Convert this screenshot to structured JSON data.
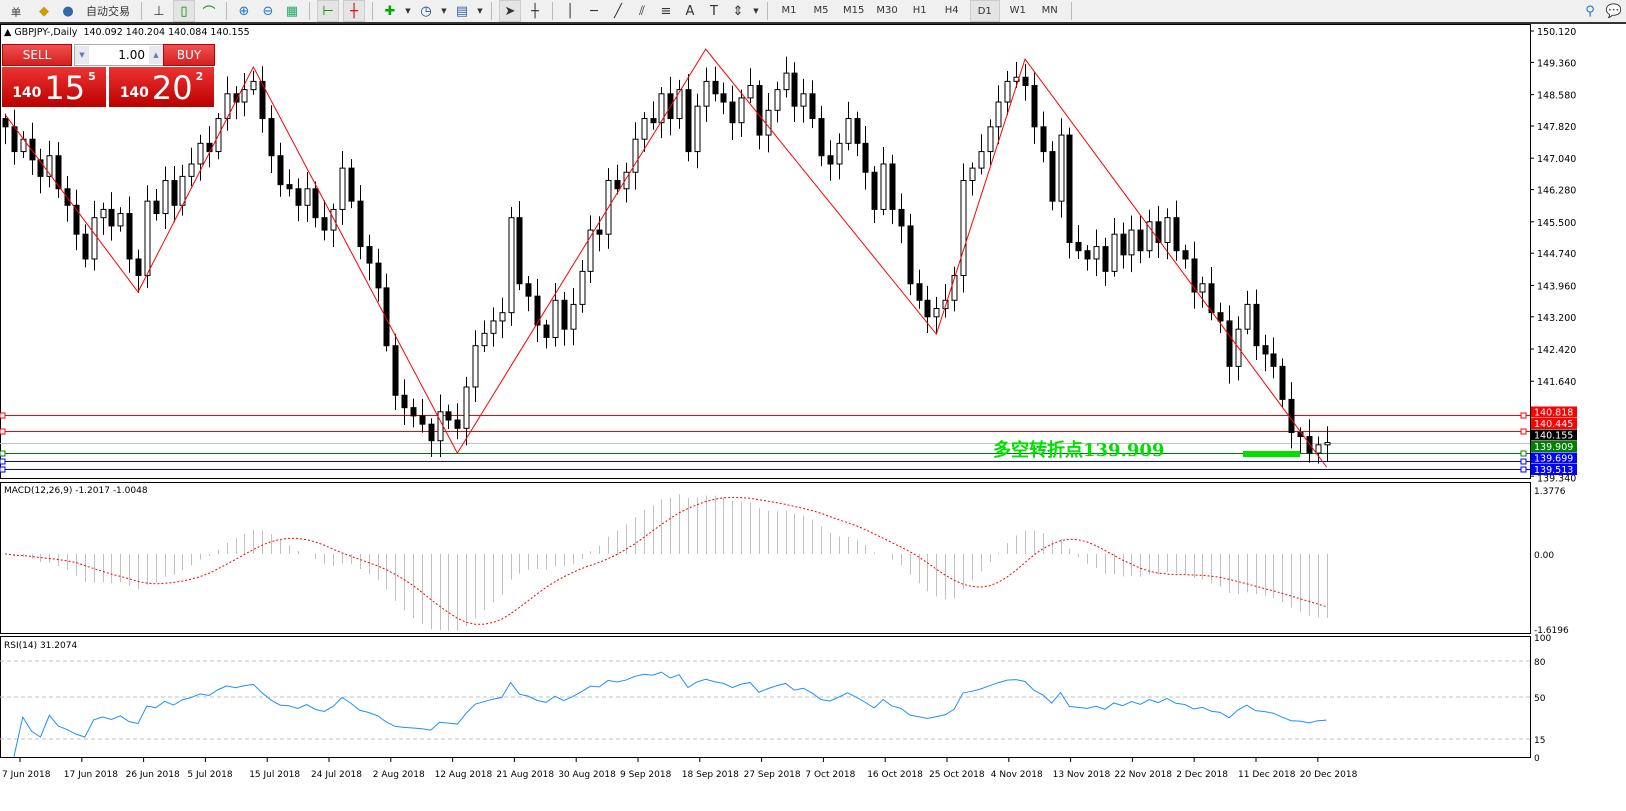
{
  "toolbar": {
    "left_cut_label": "单",
    "auto_trade_label": "自动交易",
    "icons": [
      "profiles-icon",
      "auto-trading-icon",
      "bar-chart-icon",
      "candlestick-icon",
      "line-chart-icon",
      "zoom-in-icon",
      "zoom-out-icon",
      "tile-windows-icon",
      "chart-shift-icon",
      "autoscroll-icon",
      "indicators-icon",
      "periods-icon",
      "templates-icon",
      "cursor-icon",
      "crosshair-icon",
      "vertical-line-icon",
      "horizontal-line-icon",
      "trendline-icon",
      "equidistant-channel-icon",
      "fibonacci-icon",
      "text-icon",
      "text-label-icon",
      "arrows-icon"
    ],
    "timeframes": [
      "M1",
      "M5",
      "M15",
      "M30",
      "H1",
      "H4",
      "D1",
      "W1",
      "MN"
    ],
    "active_timeframe": "D1"
  },
  "header": {
    "symbol": "▲ GBPJPY-,Daily",
    "ohlc": "140.092 140.204 140.084 140.155"
  },
  "trade_panel": {
    "sell_label": "SELL",
    "buy_label": "BUY",
    "lot": "1.00",
    "sell_prefix": "140",
    "sell_big": "15",
    "sell_pip": "5",
    "buy_prefix": "140",
    "buy_big": "20",
    "buy_pip": "2"
  },
  "price_axis": {
    "min": 139.34,
    "max": 150.12,
    "labels": [
      "150.120",
      "149.360",
      "148.580",
      "147.820",
      "147.040",
      "146.280",
      "145.500",
      "144.740",
      "143.960",
      "143.200",
      "142.420",
      "141.640",
      "139.340"
    ]
  },
  "levels": [
    {
      "value": "140.818",
      "color": "#ff0000"
    },
    {
      "value": "140.445",
      "color": "#ff0000"
    },
    {
      "value": "140.155",
      "color": "#000000",
      "line_color": "#c0c0c0"
    },
    {
      "value": "139.909",
      "color": "#008000"
    },
    {
      "value": "139.699",
      "color": "#0000ff"
    },
    {
      "value": "139.513",
      "color": "#0000ff"
    }
  ],
  "annotation": {
    "text": "多空转折点139.909",
    "color": "#00e000"
  },
  "date_axis": [
    "7 Jun 2018",
    "17 Jun 2018",
    "26 Jun 2018",
    "5 Jul 2018",
    "15 Jul 2018",
    "24 Jul 2018",
    "2 Aug 2018",
    "12 Aug 2018",
    "21 Aug 2018",
    "30 Aug 2018",
    "9 Sep 2018",
    "18 Sep 2018",
    "27 Sep 2018",
    "7 Oct 2018",
    "16 Oct 2018",
    "25 Oct 2018",
    "4 Nov 2018",
    "13 Nov 2018",
    "22 Nov 2018",
    "2 Dec 2018",
    "11 Dec 2018",
    "20 Dec 2018"
  ],
  "closes": [
    147.8,
    147.2,
    147.5,
    147.0,
    146.6,
    147.1,
    146.3,
    145.9,
    145.2,
    144.6,
    145.6,
    145.8,
    145.4,
    145.7,
    144.6,
    144.2,
    146.0,
    145.7,
    146.5,
    145.9,
    146.6,
    146.9,
    147.4,
    147.2,
    148.0,
    148.6,
    148.4,
    148.7,
    148.9,
    148.0,
    147.1,
    146.4,
    146.3,
    145.9,
    146.3,
    145.6,
    145.3,
    145.8,
    146.8,
    146.0,
    144.9,
    144.5,
    143.9,
    142.5,
    141.3,
    141.0,
    140.8,
    140.6,
    140.2,
    140.9,
    140.7,
    140.5,
    141.5,
    142.5,
    142.8,
    143.1,
    143.3,
    145.6,
    144.0,
    143.7,
    143.0,
    142.7,
    143.6,
    142.9,
    143.5,
    144.3,
    145.3,
    145.2,
    146.5,
    146.3,
    146.7,
    147.5,
    148.0,
    147.9,
    148.6,
    148.0,
    148.7,
    147.2,
    148.3,
    148.9,
    148.6,
    148.4,
    147.9,
    148.5,
    148.8,
    147.6,
    148.2,
    148.7,
    149.1,
    148.3,
    148.6,
    148.0,
    147.1,
    146.9,
    147.4,
    148.0,
    147.4,
    146.7,
    145.8,
    146.9,
    145.8,
    145.4,
    144.0,
    143.6,
    143.2,
    143.4,
    143.6,
    144.2,
    146.5,
    146.8,
    147.2,
    147.8,
    148.4,
    148.9,
    149.0,
    148.8,
    147.8,
    147.2,
    146.0,
    147.6,
    145.0,
    144.8,
    144.6,
    144.9,
    144.3,
    145.2,
    144.7,
    145.3,
    144.8,
    145.5,
    145.0,
    145.6,
    144.8,
    144.6,
    143.8,
    144.0,
    143.3,
    143.1,
    142.0,
    142.9,
    143.5,
    142.5,
    142.3,
    142.0,
    141.2,
    140.4,
    140.3,
    139.9,
    140.1,
    140.155
  ],
  "zigzag": [
    [
      0,
      148.1
    ],
    [
      15,
      143.8
    ],
    [
      28,
      149.25
    ],
    [
      51,
      139.9
    ],
    [
      79,
      149.68
    ],
    [
      105,
      142.78
    ],
    [
      115,
      149.44
    ],
    [
      149,
      139.56
    ]
  ],
  "macd": {
    "label": "MACD(12,26,9) -1.2017 -1.0048",
    "max": 1.3776,
    "min": -1.6196,
    "labels": [
      "1.3776",
      "0.00",
      "-1.6196"
    ],
    "histogram_color": "#c0c0c0",
    "signal_color": "#ff0000"
  },
  "rsi": {
    "label": "RSI(14) 31.2074",
    "levels": [
      "100",
      "80",
      "50",
      "15",
      "0"
    ],
    "color": "#1e90ff"
  },
  "colors": {
    "zigzag": "#ff0000",
    "bull_body": "#ffffff",
    "bear_body": "#000000"
  }
}
